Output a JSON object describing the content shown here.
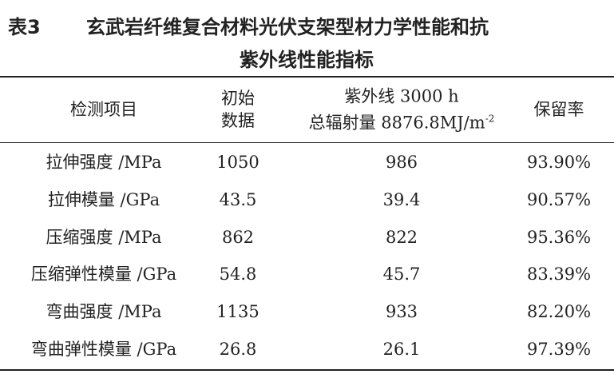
{
  "title": {
    "label": "表3",
    "lines": [
      "玄武岩纤维复合材料光伏支架型材力学性能和抗",
      "紫外线性能指标"
    ]
  },
  "table": {
    "columns": [
      {
        "lines": [
          "检测项目"
        ]
      },
      {
        "lines": [
          "初始",
          "数据"
        ]
      },
      {
        "lines": [
          "紫外线 3000 h",
          "总辐射量 8876.8MJ/m"
        ],
        "sup": "-2"
      },
      {
        "lines": [
          "保留率"
        ]
      }
    ],
    "rows": [
      [
        "拉伸强度 /MPa",
        "1050",
        "986",
        "93.90%"
      ],
      [
        "拉伸模量 /GPa",
        "43.5",
        "39.4",
        "90.57%"
      ],
      [
        "压缩强度 /MPa",
        "862",
        "822",
        "95.36%"
      ],
      [
        "压缩弹性模量 /GPa",
        "54.8",
        "45.7",
        "83.39%"
      ],
      [
        "弯曲强度 /MPa",
        "1135",
        "933",
        "82.20%"
      ],
      [
        "弯曲弹性模量 /GPa",
        "26.8",
        "26.1",
        "97.39%"
      ]
    ]
  }
}
